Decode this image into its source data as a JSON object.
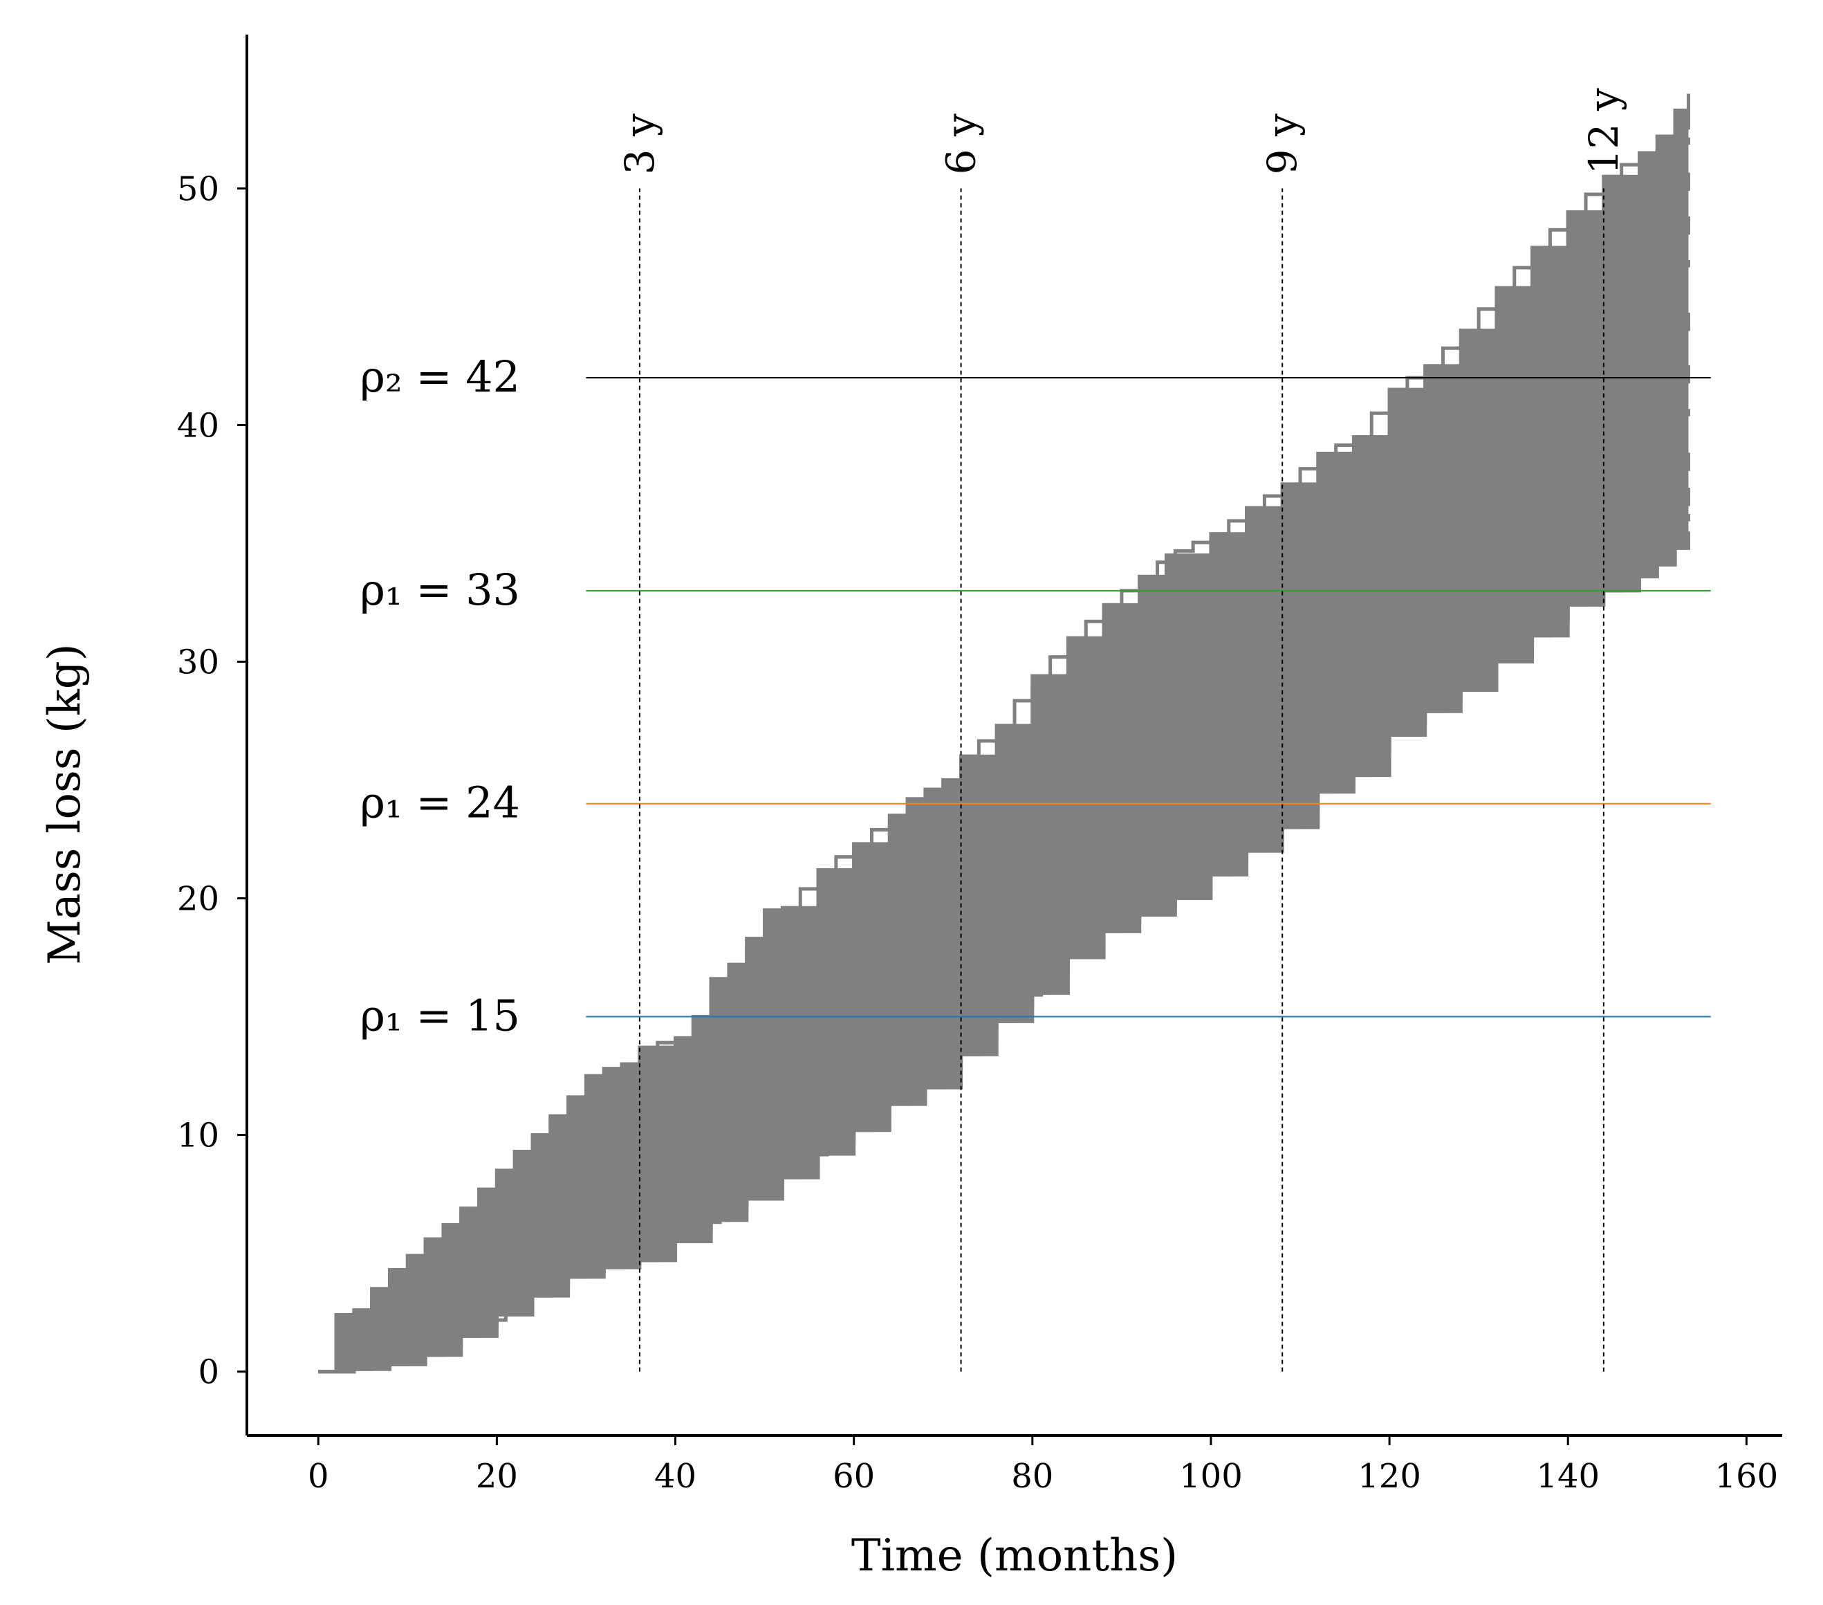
{
  "chart_data": {
    "type": "line",
    "title": "",
    "xlabel": "Time (months)",
    "ylabel": "Mass loss (kg)",
    "xlim": [
      -8,
      164
    ],
    "ylim": [
      -2.7,
      56.5
    ],
    "xticks": [
      0,
      20,
      40,
      60,
      80,
      100,
      120,
      140,
      160
    ],
    "yticks": [
      0,
      10,
      20,
      30,
      40,
      50
    ],
    "grid": false,
    "series_description_note": "",
    "trajectory_band": {
      "color": "#808080",
      "step_style": "step",
      "x_start": 0,
      "x_end": 153.5,
      "upper_envelope": {
        "x": [
          0,
          2,
          4,
          6,
          8,
          10,
          12,
          14,
          16,
          18,
          20,
          22,
          24,
          26,
          28,
          30,
          32,
          34,
          36,
          40,
          42,
          44,
          46,
          48,
          50,
          52,
          56,
          60,
          64,
          66,
          68,
          70,
          72,
          76,
          80,
          84,
          88,
          92,
          95,
          100,
          104,
          108,
          112,
          116,
          120,
          124,
          128,
          132,
          136,
          140,
          144,
          148,
          150,
          152,
          153.5
        ],
        "y": [
          0,
          2.4,
          2.6,
          3.5,
          4.3,
          4.9,
          5.6,
          6.2,
          6.9,
          7.7,
          8.5,
          9.3,
          10.0,
          10.8,
          11.6,
          12.5,
          12.8,
          13.0,
          13.7,
          14.1,
          15.0,
          16.6,
          17.2,
          18.3,
          19.5,
          19.6,
          21.2,
          22.3,
          23.5,
          24.2,
          24.6,
          25.0,
          26.0,
          27.3,
          29.4,
          31.0,
          32.4,
          33.6,
          34.5,
          35.4,
          36.5,
          37.5,
          38.8,
          39.5,
          41.5,
          42.5,
          44.0,
          45.8,
          47.5,
          49.0,
          50.5,
          51.5,
          52.2,
          53.3,
          54.0
        ]
      },
      "lower_envelope": {
        "x": [
          0,
          2,
          4,
          8,
          12,
          16,
          20,
          24,
          28,
          32,
          36,
          40,
          44,
          48,
          52,
          56,
          60,
          64,
          68,
          72,
          76,
          80,
          84,
          88,
          92,
          96,
          100,
          104,
          108,
          112,
          116,
          120,
          124,
          128,
          132,
          136,
          140,
          144,
          148,
          150,
          152,
          153.5
        ],
        "y": [
          0,
          0,
          0.1,
          0.3,
          0.7,
          1.5,
          2.4,
          3.2,
          4.0,
          4.4,
          4.7,
          5.5,
          6.4,
          7.3,
          8.2,
          9.2,
          10.2,
          11.3,
          12.0,
          13.4,
          14.8,
          16.0,
          17.5,
          18.6,
          19.3,
          20.0,
          21.0,
          22.0,
          23.0,
          24.5,
          25.2,
          26.9,
          27.9,
          28.8,
          30.0,
          31.1,
          32.4,
          33.0,
          33.6,
          34.1,
          34.8,
          35.5
        ]
      }
    },
    "thresholds": [
      {
        "label": "ρ₂ = 42",
        "y": 42,
        "x_start": 30,
        "x_end": 156,
        "color": "#000000"
      },
      {
        "label": "ρ₁ = 33",
        "y": 33,
        "x_start": 30,
        "x_end": 156,
        "color": "#2ca02c"
      },
      {
        "label": "ρ₁ = 24",
        "y": 24,
        "x_start": 30,
        "x_end": 156,
        "color": "#ff7f0e"
      },
      {
        "label": "ρ₁ = 15",
        "y": 15,
        "x_start": 30,
        "x_end": 156,
        "color": "#1f77b4"
      }
    ],
    "year_markers": [
      {
        "label": "3 y",
        "x": 36
      },
      {
        "label": "6 y",
        "x": 72
      },
      {
        "label": "9 y",
        "x": 108
      },
      {
        "label": "12 y",
        "x": 144
      }
    ]
  }
}
